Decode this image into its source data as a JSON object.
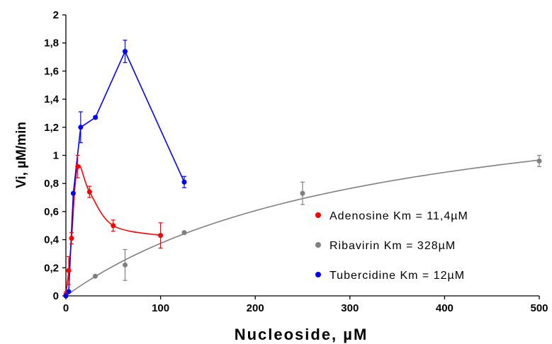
{
  "chart_data": {
    "type": "scatter",
    "xlabel": "Nucleoside, µM",
    "ylabel": "Vi, µM/min",
    "xlim": [
      0,
      500
    ],
    "ylim": [
      0,
      2
    ],
    "x_ticks": [
      "0",
      "100",
      "200",
      "300",
      "400",
      "500"
    ],
    "y_ticks": [
      "0",
      "0,2",
      "0,4",
      "0,6",
      "0,8",
      "1",
      "1,2",
      "1,4",
      "1,6",
      "1,8",
      "2"
    ],
    "grid": false,
    "legend_position": "bottom-right",
    "series": [
      {
        "name": "Adenosine Km = 11,4µM",
        "color": "#ff0000",
        "line_style": "smooth",
        "points": [
          {
            "x": 0,
            "y": 0.01,
            "err": 0.02
          },
          {
            "x": 3,
            "y": 0.18,
            "err": 0.1
          },
          {
            "x": 6,
            "y": 0.41,
            "err": 0.04
          },
          {
            "x": 12.5,
            "y": 0.92,
            "err": 0.08
          },
          {
            "x": 25,
            "y": 0.74,
            "err": 0.04
          },
          {
            "x": 50,
            "y": 0.5,
            "err": 0.04
          },
          {
            "x": 100,
            "y": 0.43,
            "err": 0.09
          }
        ]
      },
      {
        "name": "Ribavirin Km = 328µM",
        "color": "#808080",
        "line_style": "fit",
        "fit": {
          "vmax": 1.6,
          "km": 328
        },
        "points": [
          {
            "x": 0,
            "y": 0.0,
            "err": 0
          },
          {
            "x": 31,
            "y": 0.14,
            "err": 0
          },
          {
            "x": 62.5,
            "y": 0.22,
            "err": 0.11
          },
          {
            "x": 125,
            "y": 0.45,
            "err": 0.01
          },
          {
            "x": 250,
            "y": 0.73,
            "err": 0.08
          },
          {
            "x": 500,
            "y": 0.96,
            "err": 0.04
          }
        ]
      },
      {
        "name": "Tubercidine Km = 12µM",
        "color": "#0000ff",
        "line_style": "straight",
        "points": [
          {
            "x": 0,
            "y": 0.0,
            "err": 0
          },
          {
            "x": 3,
            "y": 0.03,
            "err": 0
          },
          {
            "x": 7.8,
            "y": 0.73,
            "err": 0
          },
          {
            "x": 15.6,
            "y": 1.2,
            "err": 0.11
          },
          {
            "x": 31.2,
            "y": 1.27,
            "err": 0.01
          },
          {
            "x": 62.5,
            "y": 1.74,
            "err": 0.08
          },
          {
            "x": 125,
            "y": 0.81,
            "err": 0.04
          }
        ]
      }
    ]
  }
}
